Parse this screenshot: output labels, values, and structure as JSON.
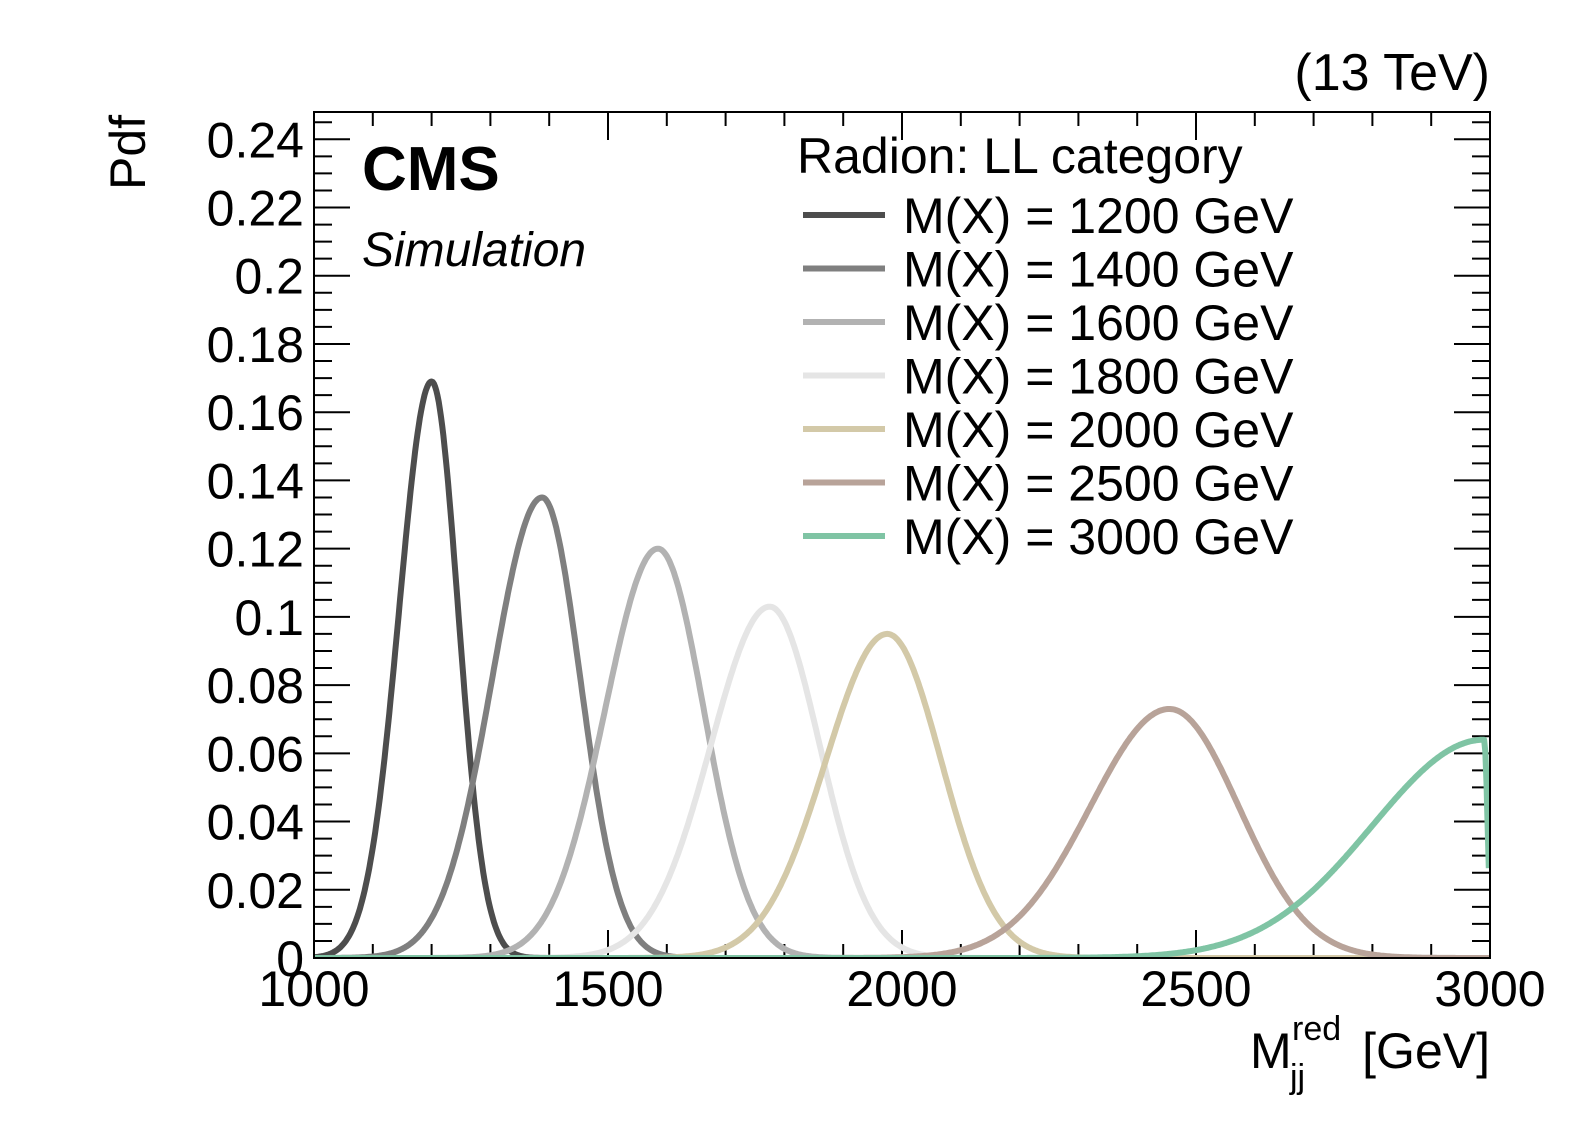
{
  "chart_data": {
    "type": "line",
    "energy_label": "(13 TeV)",
    "experiment": "CMS",
    "sublabel": "Simulation",
    "ylabel": "Pdf",
    "xlabel_main": "M",
    "xlabel_sub": "jj",
    "xlabel_sup": "red",
    "xlabel_unit": "[GeV]",
    "xlim": [
      1000,
      3000
    ],
    "ylim": [
      0,
      0.248
    ],
    "x_ticks": [
      1000,
      1500,
      2000,
      2500,
      3000
    ],
    "x_tick_labels": [
      "1000",
      "1500",
      "2000",
      "2500",
      "3000"
    ],
    "y_ticks": [
      0,
      0.02,
      0.04,
      0.06,
      0.08,
      0.1,
      0.12,
      0.14,
      0.16,
      0.18,
      0.2,
      0.22,
      0.24
    ],
    "y_tick_labels": [
      "0",
      "0.02",
      "0.04",
      "0.06",
      "0.08",
      "0.1",
      "0.12",
      "0.14",
      "0.16",
      "0.18",
      "0.2",
      "0.22",
      "0.24"
    ],
    "legend_title": "Radion:  LL category",
    "legend_position": "top-right",
    "grid": false,
    "series": [
      {
        "name": "M(X) = 1200 GeV",
        "color": "#4d4d4d",
        "peak_x": 1200,
        "peak_y": 0.169,
        "sigma_left": 55,
        "sigma_right": 45
      },
      {
        "name": "M(X) = 1400 GeV",
        "color": "#7f7f7f",
        "peak_x": 1388,
        "peak_y": 0.135,
        "sigma_left": 85,
        "sigma_right": 65
      },
      {
        "name": "M(X) = 1600 GeV",
        "color": "#b2b2b2",
        "peak_x": 1585,
        "peak_y": 0.12,
        "sigma_left": 90,
        "sigma_right": 78
      },
      {
        "name": "M(X) = 1800 GeV",
        "color": "#e5e5e5",
        "peak_x": 1775,
        "peak_y": 0.103,
        "sigma_left": 100,
        "sigma_right": 85
      },
      {
        "name": "M(X) = 2000 GeV",
        "color": "#d3c9a8",
        "peak_x": 1975,
        "peak_y": 0.095,
        "sigma_left": 105,
        "sigma_right": 92
      },
      {
        "name": "M(X) = 2500 GeV",
        "color": "#b8a399",
        "peak_x": 2455,
        "peak_y": 0.073,
        "sigma_left": 135,
        "sigma_right": 118
      },
      {
        "name": "M(X) = 3000 GeV",
        "color": "#7fc4a4",
        "peak_x": 2990,
        "peak_y": 0.064,
        "sigma_left": 190,
        "sigma_right": 6
      }
    ]
  }
}
